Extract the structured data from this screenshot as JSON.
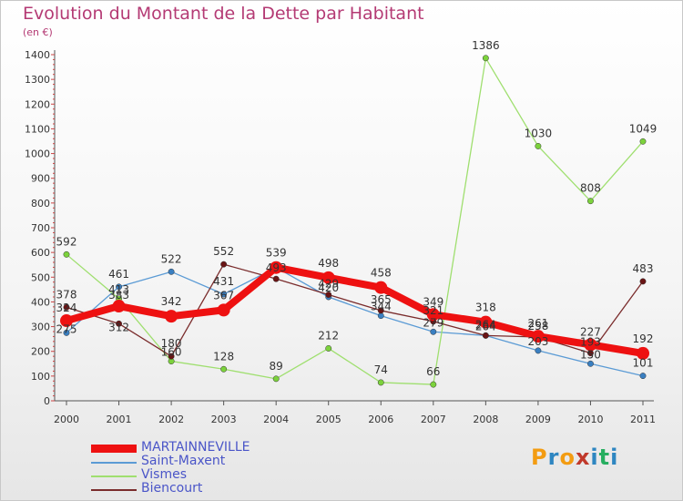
{
  "title": "Evolution du Montant de la Dette par Habitant",
  "unit_label": "(en €)",
  "logo": {
    "letters": [
      "P",
      "r",
      "o",
      "x",
      "i",
      "t",
      "i"
    ],
    "colors": [
      "#f39c12",
      "#2e86c1",
      "#f39c12",
      "#c0392b",
      "#2e86c1",
      "#27ae60",
      "#2e86c1"
    ]
  },
  "chart_data": {
    "type": "line",
    "xlabel": "",
    "ylabel": "",
    "x": [
      "2000",
      "2001",
      "2002",
      "2003",
      "2004",
      "2005",
      "2006",
      "2007",
      "2008",
      "2009",
      "2010",
      "2011"
    ],
    "ylim": [
      0,
      1400
    ],
    "yticks": [
      0,
      100,
      200,
      300,
      400,
      500,
      600,
      700,
      800,
      900,
      1000,
      1100,
      1200,
      1300,
      1400
    ],
    "grid": false,
    "legend_position": "bottom-left",
    "series": [
      {
        "name": "Saint-Maxent",
        "color": "#5b9bd5",
        "marker": "#3a7fc1",
        "values": [
          275,
          461,
          522,
          431,
          539,
          420,
          344,
          279,
          264,
          203,
          150,
          101
        ]
      },
      {
        "name": "Vismes",
        "color": "#9fdf6f",
        "marker": "#7cd23c",
        "values": [
          592,
          413,
          160,
          128,
          89,
          212,
          74,
          66,
          1386,
          1030,
          808,
          1049
        ]
      },
      {
        "name": "Biencourt",
        "color": "#7a2c2c",
        "marker": "#6a1414",
        "values": [
          378,
          312,
          180,
          552,
          493,
          429,
          365,
          321,
          264,
          258,
          193,
          483
        ]
      },
      {
        "name": "MARTAINNEVILLE",
        "color": "#ee1111",
        "marker": "#ee1111",
        "values": [
          324,
          383,
          342,
          367,
          539,
          498,
          458,
          349,
          318,
          261,
          227,
          192
        ]
      }
    ],
    "labels": [
      {
        "series": 0,
        "i": 0,
        "text": "275",
        "dy": 0
      },
      {
        "series": 0,
        "i": 1,
        "text": "461",
        "dy": -10
      },
      {
        "series": 0,
        "i": 2,
        "text": "522",
        "dy": -10
      },
      {
        "series": 0,
        "i": 3,
        "text": "431",
        "dy": -10
      },
      {
        "series": 0,
        "i": 5,
        "text": "420",
        "dy": -6
      },
      {
        "series": 0,
        "i": 6,
        "text": "344",
        "dy": -6
      },
      {
        "series": 0,
        "i": 7,
        "text": "279",
        "dy": -6
      },
      {
        "series": 0,
        "i": 8,
        "text": "264",
        "dy": -6
      },
      {
        "series": 0,
        "i": 9,
        "text": "203",
        "dy": -6
      },
      {
        "series": 0,
        "i": 10,
        "text": "150",
        "dy": -6
      },
      {
        "series": 0,
        "i": 11,
        "text": "101",
        "dy": -10
      },
      {
        "series": 1,
        "i": 0,
        "text": "592",
        "dy": -10
      },
      {
        "series": 1,
        "i": 1,
        "text": "413",
        "dy": -6
      },
      {
        "series": 1,
        "i": 2,
        "text": "160",
        "dy": -6
      },
      {
        "series": 1,
        "i": 3,
        "text": "128",
        "dy": -10
      },
      {
        "series": 1,
        "i": 4,
        "text": "89",
        "dy": -10
      },
      {
        "series": 1,
        "i": 5,
        "text": "212",
        "dy": -10
      },
      {
        "series": 1,
        "i": 6,
        "text": "74",
        "dy": -10
      },
      {
        "series": 1,
        "i": 7,
        "text": "66",
        "dy": -10
      },
      {
        "series": 1,
        "i": 8,
        "text": "1386",
        "dy": -10
      },
      {
        "series": 1,
        "i": 9,
        "text": "1030",
        "dy": -10
      },
      {
        "series": 1,
        "i": 10,
        "text": "808",
        "dy": -10
      },
      {
        "series": 1,
        "i": 11,
        "text": "1049",
        "dy": -10
      },
      {
        "series": 2,
        "i": 0,
        "text": "378",
        "dy": -10
      },
      {
        "series": 2,
        "i": 1,
        "text": "312",
        "dy": 8
      },
      {
        "series": 2,
        "i": 2,
        "text": "180",
        "dy": -10
      },
      {
        "series": 2,
        "i": 3,
        "text": "552",
        "dy": -10
      },
      {
        "series": 2,
        "i": 4,
        "text": "493",
        "dy": -8
      },
      {
        "series": 2,
        "i": 5,
        "text": "429",
        "dy": -8
      },
      {
        "series": 2,
        "i": 6,
        "text": "365",
        "dy": -8
      },
      {
        "series": 2,
        "i": 7,
        "text": "321",
        "dy": -8
      },
      {
        "series": 2,
        "i": 8,
        "text": "264",
        "dy": -8
      },
      {
        "series": 2,
        "i": 9,
        "text": "258",
        "dy": -8
      },
      {
        "series": 2,
        "i": 10,
        "text": "193",
        "dy": -8
      },
      {
        "series": 2,
        "i": 11,
        "text": "483",
        "dy": -10
      },
      {
        "series": 3,
        "i": 0,
        "text": "324",
        "dy": -10
      },
      {
        "series": 3,
        "i": 1,
        "text": "383",
        "dy": -8
      },
      {
        "series": 3,
        "i": 2,
        "text": "342",
        "dy": -12
      },
      {
        "series": 3,
        "i": 3,
        "text": "367",
        "dy": -12
      },
      {
        "series": 3,
        "i": 4,
        "text": "539",
        "dy": -12
      },
      {
        "series": 3,
        "i": 5,
        "text": "498",
        "dy": -12
      },
      {
        "series": 3,
        "i": 6,
        "text": "458",
        "dy": -12
      },
      {
        "series": 3,
        "i": 7,
        "text": "349",
        "dy": -10
      },
      {
        "series": 3,
        "i": 8,
        "text": "318",
        "dy": -12
      },
      {
        "series": 3,
        "i": 9,
        "text": "261",
        "dy": -10
      },
      {
        "series": 3,
        "i": 10,
        "text": "227",
        "dy": -10
      },
      {
        "series": 3,
        "i": 11,
        "text": "192",
        "dy": -12
      }
    ]
  }
}
